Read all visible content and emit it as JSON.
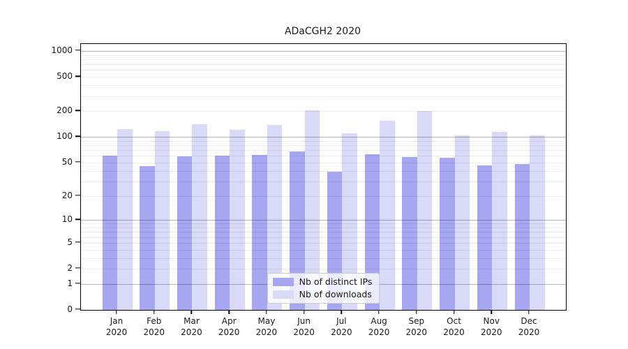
{
  "title": "ADaCGH2 2020",
  "x_year_label": "2020",
  "chart_data": {
    "type": "bar",
    "title": "ADaCGH2 2020",
    "xlabel": "",
    "ylabel": "",
    "scale": "log1p",
    "ylim": [
      0,
      1206
    ],
    "grid": "on",
    "legend_position": "bottom-center-inside",
    "categories": [
      "Jan",
      "Feb",
      "Mar",
      "Apr",
      "May",
      "Jun",
      "Jul",
      "Aug",
      "Sep",
      "Oct",
      "Nov",
      "Dec"
    ],
    "year": "2020",
    "y_ticks": [
      0,
      1,
      2,
      5,
      10,
      20,
      50,
      100,
      200,
      500,
      1000
    ],
    "grid_major": [
      1,
      10,
      100,
      1000
    ],
    "grid_minor": [
      2,
      3,
      4,
      5,
      6,
      7,
      8,
      9,
      20,
      30,
      40,
      50,
      60,
      70,
      80,
      90,
      200,
      300,
      400,
      500,
      600,
      700,
      800,
      900
    ],
    "series": [
      {
        "name": "Nb of distinct IPs",
        "color": "#a6a6f1",
        "values": [
          60,
          45,
          59,
          60,
          62,
          67,
          39,
          63,
          58,
          57,
          46,
          48
        ]
      },
      {
        "name": "Nb of downloads",
        "color": "#d9d9f8",
        "values": [
          124,
          116,
          140,
          121,
          137,
          206,
          110,
          155,
          200,
          105,
          115,
          105
        ]
      }
    ]
  },
  "colors": {
    "spine": "#000000",
    "tick_text": "#1a1a1a",
    "grid_major": "#b8b8b8",
    "grid_minor": "#ededed",
    "legend_border": "#cccccc"
  }
}
